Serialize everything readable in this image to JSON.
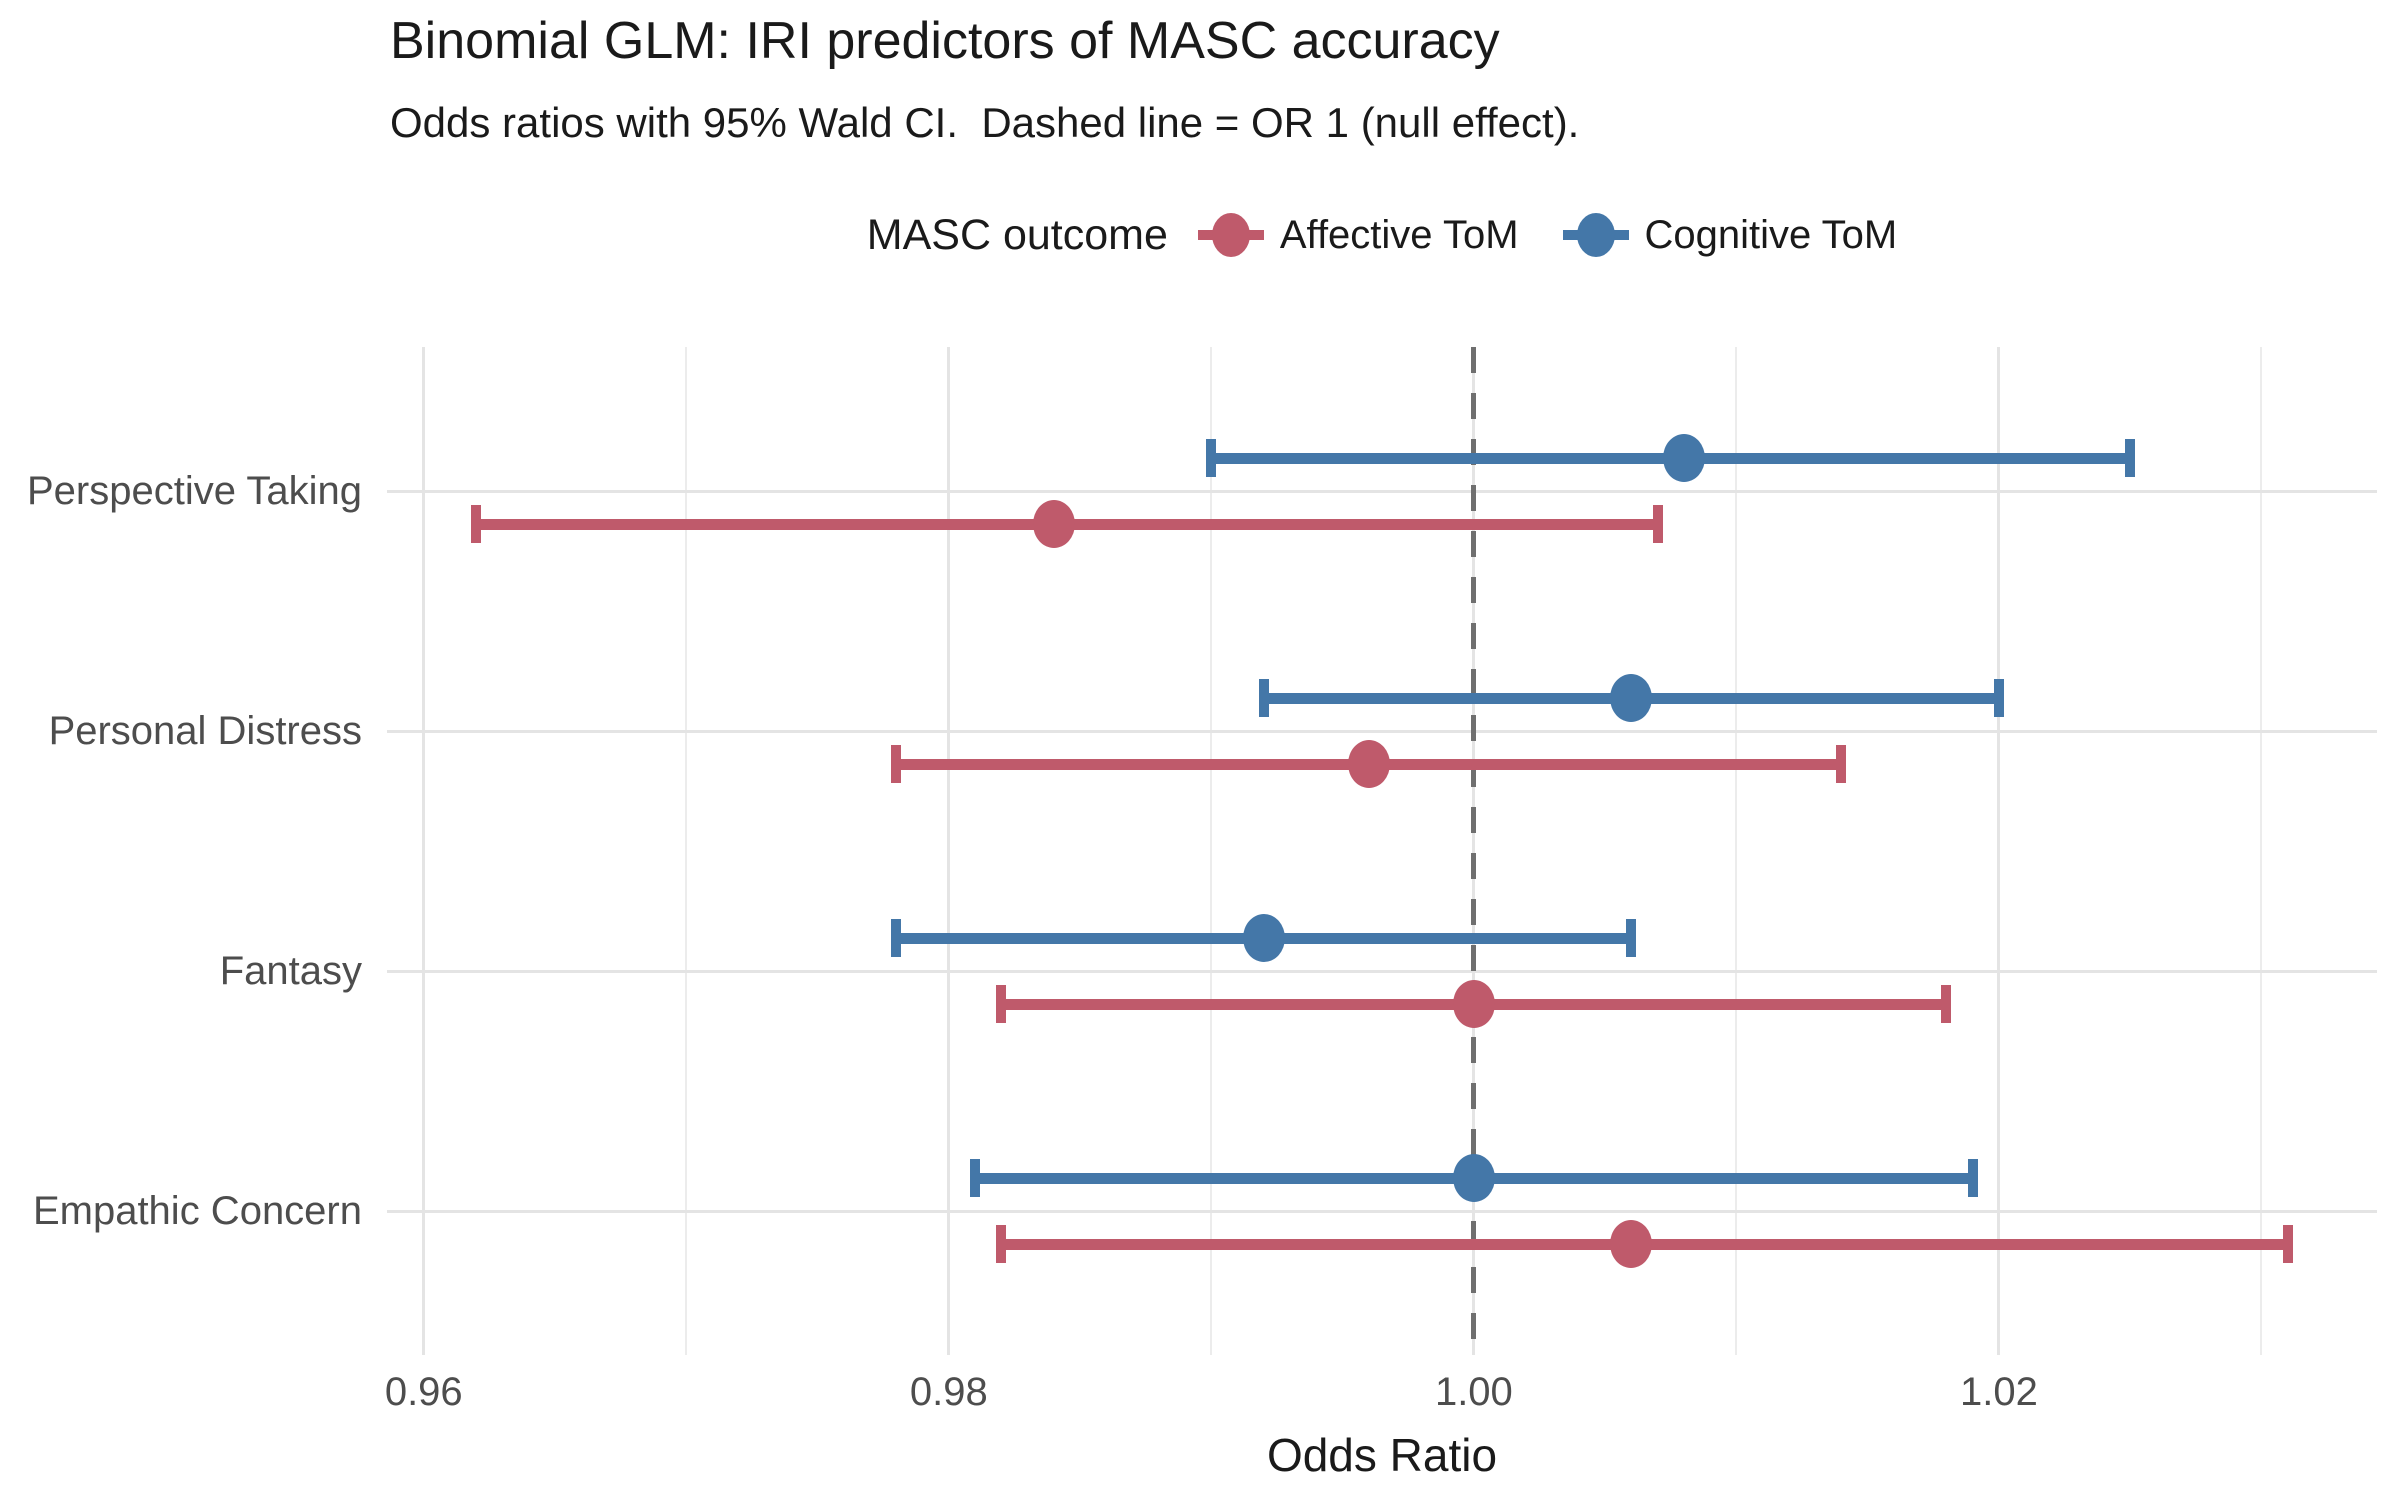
{
  "title": "Binomial GLM: IRI predictors of MASC accuracy",
  "subtitle": "Odds ratios with 95% Wald CI.  Dashed line = OR 1 (null effect).",
  "legend": {
    "title": "MASC outcome",
    "entries": [
      {
        "label": "Affective ToM",
        "color": "#BF5A6B"
      },
      {
        "label": "Cognitive ToM",
        "color": "#4477A8"
      }
    ]
  },
  "axis": {
    "x_title": "Odds Ratio",
    "tick_labels": [
      "0.96",
      "0.98",
      "1.00",
      "1.02"
    ]
  },
  "colors": {
    "affective": "#BF5A6B",
    "cognitive": "#4477A8",
    "grid_major": "#e4e4e4",
    "grid_minor": "#ececec",
    "reference_line": "#6f6f6f",
    "axis_text": "#4d4d4d"
  },
  "chart_data": {
    "type": "scatter",
    "style": "forest-plot-pointrange-95CI",
    "title": "Binomial GLM: IRI predictors of MASC accuracy",
    "subtitle": "Odds ratios with 95% Wald CI.  Dashed line = OR 1 (null effect).",
    "xlabel": "Odds Ratio",
    "ylabel": "",
    "categories": [
      "Perspective Taking",
      "Personal Distress",
      "Fantasy",
      "Empathic Concern"
    ],
    "xlim": [
      0.9586,
      1.0344
    ],
    "x_ticks": [
      0.96,
      0.98,
      1.0,
      1.02
    ],
    "x_tick_labels": [
      "0.96",
      "0.98",
      "1.00",
      "1.02"
    ],
    "x_minor_ticks": [
      0.97,
      0.99,
      1.01,
      1.03
    ],
    "reference_line_x": 1.0,
    "grid": true,
    "legend_position": "top",
    "legend_title": "MASC outcome",
    "series": [
      {
        "name": "Cognitive ToM",
        "color": "#4477A8",
        "position": "above",
        "or": [
          1.008,
          1.006,
          0.992,
          1.0
        ],
        "ci_low": [
          0.99,
          0.992,
          0.978,
          0.981
        ],
        "ci_high": [
          1.025,
          1.02,
          1.006,
          1.019
        ]
      },
      {
        "name": "Affective ToM",
        "color": "#BF5A6B",
        "position": "below",
        "or": [
          0.984,
          0.996,
          1.0,
          1.006
        ],
        "ci_low": [
          0.962,
          0.978,
          0.982,
          0.982
        ],
        "ci_high": [
          1.007,
          1.014,
          1.018,
          1.031
        ]
      }
    ]
  }
}
